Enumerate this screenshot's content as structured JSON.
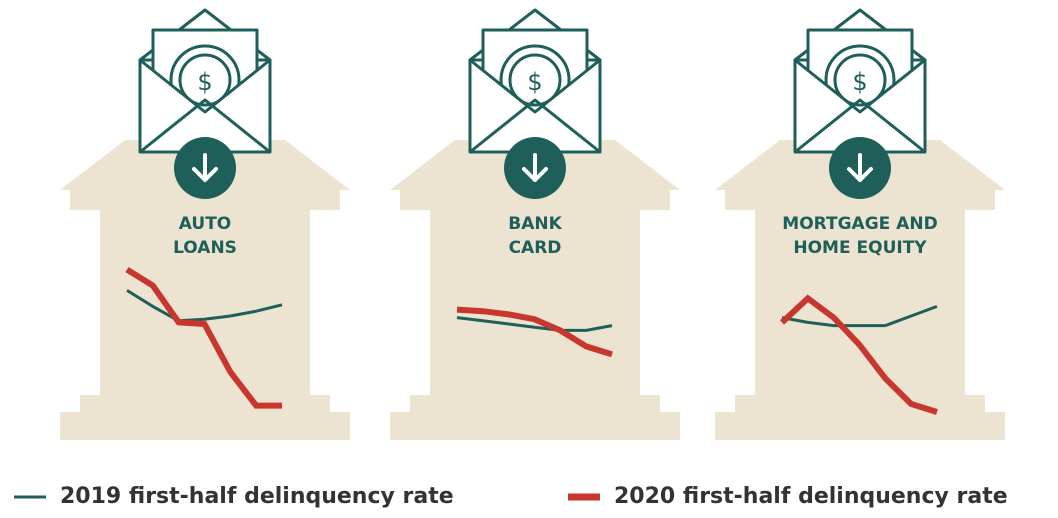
{
  "chart_data": [
    {
      "type": "line",
      "title": "AUTO LOANS",
      "categories": [
        null,
        null,
        null,
        null,
        null,
        null,
        null
      ],
      "ylim": [
        0,
        100
      ],
      "series": [
        {
          "color": "#1e5f5a",
          "values": [
            81,
            71,
            62,
            63,
            65,
            68,
            72
          ]
        },
        {
          "color": "#c8372d",
          "values": [
            94,
            84,
            61,
            60,
            30,
            9,
            9
          ]
        }
      ]
    },
    {
      "type": "line",
      "title": "BANK CARD",
      "categories": [
        null,
        null,
        null,
        null,
        null,
        null,
        null
      ],
      "ylim": [
        0,
        100
      ],
      "series": [
        {
          "color": "#1e5f5a",
          "values": [
            64,
            62,
            60,
            58,
            56,
            56,
            59
          ]
        },
        {
          "color": "#c8372d",
          "values": [
            69,
            68,
            66,
            63,
            56,
            46,
            41
          ]
        }
      ]
    },
    {
      "type": "line",
      "title": "MORTGAGE AND HOME EQUITY",
      "categories": [
        null,
        null,
        null,
        null,
        null,
        null,
        null
      ],
      "ylim": [
        0,
        100
      ],
      "series": [
        {
          "color": "#1e5f5a",
          "values": [
            64,
            61,
            59,
            59,
            59,
            65,
            71
          ]
        },
        {
          "color": "#c8372d",
          "values": [
            61,
            76,
            64,
            47,
            26,
            10,
            5
          ]
        }
      ]
    }
  ],
  "icon_symbol": "$",
  "legend": [
    {
      "name": "2019 first-half delinquency rate",
      "color": "#1e5f5a"
    },
    {
      "name": "2020 first-half delinquency rate",
      "color": "#c8372d"
    }
  ]
}
